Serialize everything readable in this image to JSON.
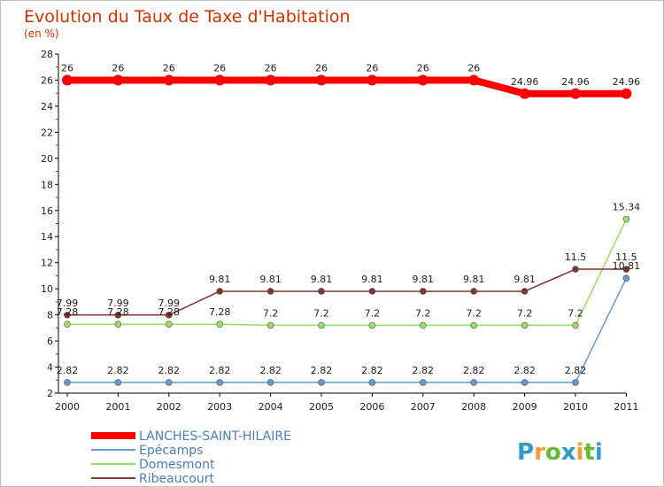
{
  "chart_data": {
    "type": "line",
    "title": "Evolution du Taux de Taxe d'Habitation",
    "subtitle": "(en %)",
    "categories": [
      "2000",
      "2001",
      "2002",
      "2003",
      "2004",
      "2005",
      "2006",
      "2007",
      "2008",
      "2009",
      "2010",
      "2011"
    ],
    "ylim": [
      2,
      28
    ],
    "yticks": [
      2,
      4,
      6,
      8,
      10,
      12,
      14,
      16,
      18,
      20,
      22,
      24,
      26,
      28
    ],
    "grid": false,
    "legend_position": "bottom-left",
    "series": [
      {
        "name": "LANCHES-SAINT-HILAIRE",
        "color": "#ff0000",
        "values": [
          26,
          26,
          26,
          26,
          26,
          26,
          26,
          26,
          26,
          24.96,
          24.96,
          24.96
        ],
        "labels": [
          "26",
          "26",
          "26",
          "26",
          "26",
          "26",
          "26",
          "26",
          "26",
          "24.96",
          "24.96",
          "24.96"
        ]
      },
      {
        "name": "Epécamps",
        "color": "#6699cc",
        "values": [
          2.82,
          2.82,
          2.82,
          2.82,
          2.82,
          2.82,
          2.82,
          2.82,
          2.82,
          2.82,
          2.82,
          10.81
        ],
        "labels": [
          "2.82",
          "2.82",
          "2.82",
          "2.82",
          "2.82",
          "2.82",
          "2.82",
          "2.82",
          "2.82",
          "2.82",
          "2.82",
          "10.81"
        ]
      },
      {
        "name": "Domesmont",
        "color": "#99dd66",
        "values": [
          7.28,
          7.28,
          7.28,
          7.28,
          7.2,
          7.2,
          7.2,
          7.2,
          7.2,
          7.2,
          7.2,
          15.34
        ],
        "labels": [
          "7.28",
          "7.28",
          "7.28",
          "7.28",
          "7.2",
          "7.2",
          "7.2",
          "7.2",
          "7.2",
          "7.2",
          "7.2",
          "15.34"
        ]
      },
      {
        "name": "Ribeaucourt",
        "color": "#803333",
        "values": [
          7.99,
          7.99,
          7.99,
          9.81,
          9.81,
          9.81,
          9.81,
          9.81,
          9.81,
          9.81,
          11.5,
          11.5
        ],
        "labels": [
          "7.99",
          "7.99",
          "7.99",
          "9.81",
          "9.81",
          "9.81",
          "9.81",
          "9.81",
          "9.81",
          "9.81",
          "11.5",
          "11.5"
        ]
      }
    ]
  },
  "branding": {
    "logo_text": "Proxiti",
    "letter_colors": [
      "#3399cc",
      "#ff9933",
      "#66bb33",
      "#3399cc",
      "#ff9933",
      "#66bb33",
      "#3399cc"
    ]
  }
}
